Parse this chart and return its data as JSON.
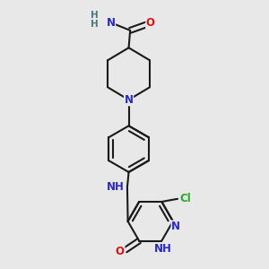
{
  "background_color": "#e8e8e8",
  "bond_color": "#1a1a1a",
  "bond_width": 1.5,
  "atom_colors": {
    "N": "#2828cc",
    "O": "#dd1111",
    "Cl": "#22aa22",
    "C": "#1a1a1a",
    "H": "#4a7a7a"
  },
  "font_size_atoms": 8.5
}
